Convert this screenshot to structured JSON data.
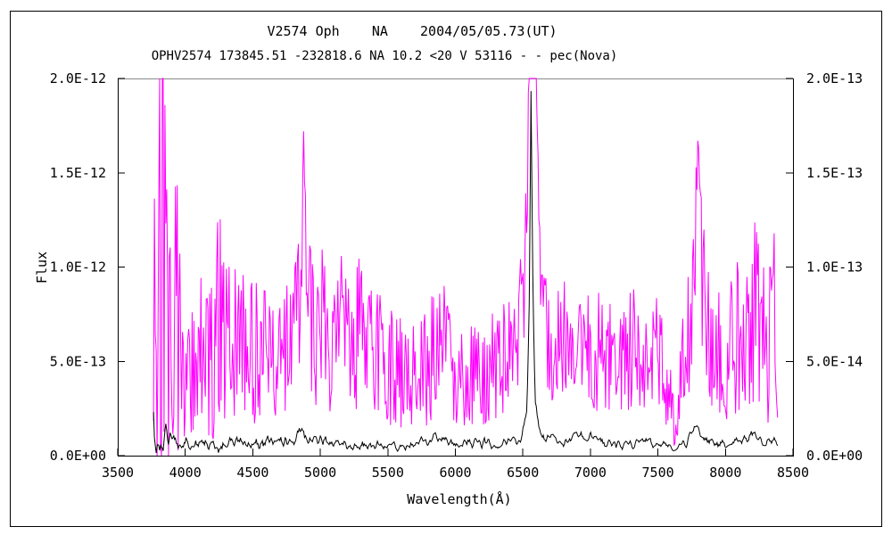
{
  "window": {
    "background": "#FFFFFF",
    "border_color": "#000000",
    "top_frame_color": "#8a8a8a"
  },
  "chart_data": {
    "type": "line",
    "title": "V2574 Oph    NA    2004/05/05.73(UT)",
    "subtitle": "OPHV2574 173845.51 -232818.6 NA 10.2 <20 V 53116 - - pec(Nova)",
    "xlabel": "Wavelength(Å)",
    "ylabel_left": "Flux",
    "xlim": [
      3500,
      8500
    ],
    "x_ticks": [
      3500,
      4000,
      4500,
      5000,
      5500,
      6000,
      6500,
      7000,
      7500,
      8000,
      8500
    ],
    "grid": false,
    "legend": "none",
    "y_max_normalized": 2.0,
    "left_axis": {
      "color": "#000000",
      "scale_note": "flux, axis spans 0 to 2.0E-12",
      "ticks": [
        {
          "v": 0.0,
          "label": "0.0E+00"
        },
        {
          "v": 0.5,
          "label": "5.0E-13"
        },
        {
          "v": 1.0,
          "label": "1.0E-12"
        },
        {
          "v": 1.5,
          "label": "1.5E-12"
        },
        {
          "v": 2.0,
          "label": "2.0E-12"
        }
      ]
    },
    "right_axis": {
      "color": "#FF00FF",
      "scale_note": "flux, axis spans 0 to 2.0E-13",
      "ticks": [
        {
          "v": 0.0,
          "label": "0.0E+00"
        },
        {
          "v": 0.5,
          "label": "5.0E-14"
        },
        {
          "v": 1.0,
          "label": "1.0E-13"
        },
        {
          "v": 1.5,
          "label": "1.5E-13"
        },
        {
          "v": 2.0,
          "label": "2.0E-13"
        }
      ]
    },
    "sampling": {
      "start": 3765,
      "end": 8390,
      "step": 6.5,
      "seed": 20040505
    },
    "series": [
      {
        "name": "spectrum-magenta-right-axis",
        "axis": "right",
        "color": "#FF00FF",
        "smooth": 1,
        "units": "1e-13 per axis tick labels",
        "envelope": [
          [
            3765,
            1.0,
            1.3
          ],
          [
            3800,
            1.0,
            1.3
          ],
          [
            3860,
            0.9,
            1.1
          ],
          [
            3920,
            0.75,
            0.9
          ],
          [
            3980,
            0.6,
            0.55
          ],
          [
            4080,
            0.55,
            0.4
          ],
          [
            4180,
            0.6,
            0.5
          ],
          [
            4250,
            0.7,
            0.65
          ],
          [
            4320,
            0.6,
            0.45
          ],
          [
            4450,
            0.55,
            0.4
          ],
          [
            4600,
            0.55,
            0.35
          ],
          [
            4700,
            0.6,
            0.4
          ],
          [
            4800,
            0.65,
            0.4
          ],
          [
            4850,
            1.0,
            0.5
          ],
          [
            4875,
            1.45,
            0.4
          ],
          [
            4905,
            0.9,
            0.45
          ],
          [
            4960,
            0.6,
            0.35
          ],
          [
            5010,
            0.75,
            0.4
          ],
          [
            5060,
            0.55,
            0.35
          ],
          [
            5150,
            0.7,
            0.4
          ],
          [
            5220,
            0.55,
            0.35
          ],
          [
            5300,
            0.68,
            0.4
          ],
          [
            5400,
            0.55,
            0.35
          ],
          [
            5550,
            0.45,
            0.3
          ],
          [
            5700,
            0.42,
            0.28
          ],
          [
            5820,
            0.5,
            0.35
          ],
          [
            5890,
            0.7,
            0.4
          ],
          [
            5960,
            0.45,
            0.3
          ],
          [
            6100,
            0.4,
            0.28
          ],
          [
            6250,
            0.45,
            0.3
          ],
          [
            6400,
            0.55,
            0.32
          ],
          [
            6500,
            0.75,
            0.35
          ],
          [
            6530,
            1.2,
            0.4
          ],
          [
            6542,
            2.3,
            0.3
          ],
          [
            6598,
            2.3,
            0.3
          ],
          [
            6612,
            1.3,
            0.35
          ],
          [
            6640,
            0.8,
            0.3
          ],
          [
            6700,
            0.55,
            0.3
          ],
          [
            6800,
            0.6,
            0.32
          ],
          [
            6900,
            0.68,
            0.35
          ],
          [
            7000,
            0.62,
            0.35
          ],
          [
            7100,
            0.5,
            0.3
          ],
          [
            7250,
            0.55,
            0.32
          ],
          [
            7400,
            0.6,
            0.35
          ],
          [
            7520,
            0.5,
            0.3
          ],
          [
            7590,
            0.3,
            0.2
          ],
          [
            7630,
            0.12,
            0.12
          ],
          [
            7680,
            0.45,
            0.3
          ],
          [
            7740,
            0.7,
            0.35
          ],
          [
            7775,
            1.2,
            0.45
          ],
          [
            7800,
            1.5,
            0.35
          ],
          [
            7830,
            0.85,
            0.4
          ],
          [
            7900,
            0.6,
            0.35
          ],
          [
            8000,
            0.55,
            0.4
          ],
          [
            8100,
            0.6,
            0.45
          ],
          [
            8180,
            0.7,
            0.5
          ],
          [
            8260,
            0.75,
            0.55
          ],
          [
            8330,
            0.65,
            0.5
          ],
          [
            8370,
            0.7,
            0.55
          ],
          [
            8390,
            0.4,
            0.4
          ]
        ]
      },
      {
        "name": "spectrum-black-left-axis",
        "axis": "left",
        "color": "#000000",
        "smooth": 3,
        "units": "1e-12 per axis tick labels",
        "envelope": [
          [
            3765,
            0.15,
            0.2
          ],
          [
            3800,
            0.1,
            0.14
          ],
          [
            3860,
            0.08,
            0.1
          ],
          [
            3940,
            0.08,
            0.08
          ],
          [
            4020,
            0.08,
            0.06
          ],
          [
            4100,
            0.06,
            0.05
          ],
          [
            4250,
            0.06,
            0.05
          ],
          [
            4340,
            0.075,
            0.05
          ],
          [
            4450,
            0.06,
            0.045
          ],
          [
            4640,
            0.085,
            0.05
          ],
          [
            4750,
            0.065,
            0.045
          ],
          [
            4820,
            0.08,
            0.045
          ],
          [
            4845,
            0.13,
            0.05
          ],
          [
            4865,
            0.17,
            0.05
          ],
          [
            4885,
            0.1,
            0.045
          ],
          [
            4960,
            0.075,
            0.045
          ],
          [
            5020,
            0.1,
            0.045
          ],
          [
            5080,
            0.065,
            0.04
          ],
          [
            5250,
            0.06,
            0.04
          ],
          [
            5450,
            0.055,
            0.035
          ],
          [
            5650,
            0.05,
            0.035
          ],
          [
            5880,
            0.1,
            0.045
          ],
          [
            5960,
            0.06,
            0.04
          ],
          [
            6150,
            0.065,
            0.04
          ],
          [
            6350,
            0.07,
            0.04
          ],
          [
            6480,
            0.09,
            0.04
          ],
          [
            6530,
            0.22,
            0.05
          ],
          [
            6548,
            0.85,
            0.06
          ],
          [
            6560,
            1.93,
            0.03
          ],
          [
            6572,
            1.0,
            0.06
          ],
          [
            6590,
            0.3,
            0.05
          ],
          [
            6620,
            0.12,
            0.04
          ],
          [
            6700,
            0.08,
            0.04
          ],
          [
            6830,
            0.075,
            0.04
          ],
          [
            6930,
            0.1,
            0.045
          ],
          [
            7060,
            0.08,
            0.04
          ],
          [
            7200,
            0.07,
            0.04
          ],
          [
            7400,
            0.075,
            0.04
          ],
          [
            7550,
            0.06,
            0.035
          ],
          [
            7630,
            0.03,
            0.02
          ],
          [
            7700,
            0.07,
            0.04
          ],
          [
            7790,
            0.17,
            0.05
          ],
          [
            7860,
            0.08,
            0.04
          ],
          [
            8000,
            0.07,
            0.04
          ],
          [
            8120,
            0.09,
            0.045
          ],
          [
            8250,
            0.1,
            0.05
          ],
          [
            8330,
            0.08,
            0.05
          ],
          [
            8390,
            0.07,
            0.06
          ]
        ]
      }
    ]
  }
}
